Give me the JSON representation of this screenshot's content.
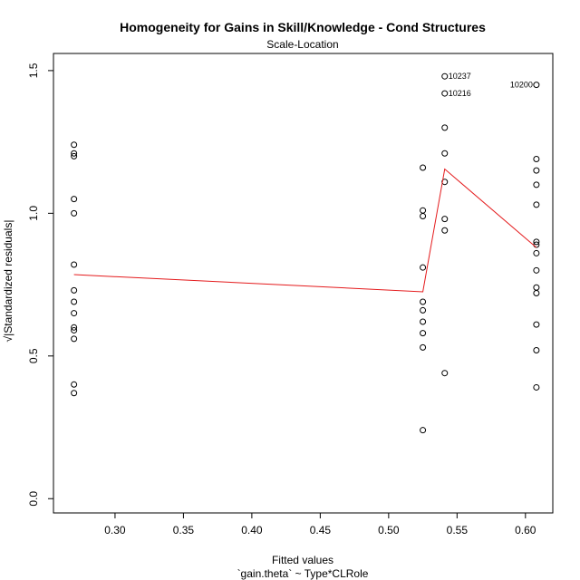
{
  "chart_data": {
    "type": "scatter",
    "title": "Homogeneity for Gains in Skill/Knowledge - Cond Structures",
    "subtitle": "Scale-Location",
    "xlabel": "Fitted values",
    "xlabel2": "`gain.theta` ~ Type*CLRole",
    "ylabel": "√|Standardized residuals|",
    "xlim": [
      0.255,
      0.62
    ],
    "ylim": [
      -0.05,
      1.56
    ],
    "xticks": [
      "0.30",
      "0.35",
      "0.40",
      "0.45",
      "0.50",
      "0.55",
      "0.60"
    ],
    "xtick_values": [
      0.3,
      0.35,
      0.4,
      0.45,
      0.5,
      0.55,
      0.6
    ],
    "yticks": [
      "0.0",
      "0.5",
      "1.0",
      "1.5"
    ],
    "ytick_values": [
      0.0,
      0.5,
      1.0,
      1.5
    ],
    "grid": false,
    "points": [
      {
        "x": 0.27,
        "y": 1.24
      },
      {
        "x": 0.27,
        "y": 1.21
      },
      {
        "x": 0.27,
        "y": 1.2
      },
      {
        "x": 0.27,
        "y": 1.05
      },
      {
        "x": 0.27,
        "y": 1.0
      },
      {
        "x": 0.27,
        "y": 0.82
      },
      {
        "x": 0.27,
        "y": 0.73
      },
      {
        "x": 0.27,
        "y": 0.69
      },
      {
        "x": 0.27,
        "y": 0.65
      },
      {
        "x": 0.27,
        "y": 0.6
      },
      {
        "x": 0.27,
        "y": 0.59
      },
      {
        "x": 0.27,
        "y": 0.56
      },
      {
        "x": 0.27,
        "y": 0.4
      },
      {
        "x": 0.27,
        "y": 0.37
      },
      {
        "x": 0.525,
        "y": 1.16
      },
      {
        "x": 0.525,
        "y": 1.01
      },
      {
        "x": 0.525,
        "y": 0.99
      },
      {
        "x": 0.525,
        "y": 0.81
      },
      {
        "x": 0.525,
        "y": 0.69
      },
      {
        "x": 0.525,
        "y": 0.66
      },
      {
        "x": 0.525,
        "y": 0.62
      },
      {
        "x": 0.525,
        "y": 0.58
      },
      {
        "x": 0.525,
        "y": 0.53
      },
      {
        "x": 0.525,
        "y": 0.24
      },
      {
        "x": 0.541,
        "y": 1.48,
        "label": "10237"
      },
      {
        "x": 0.541,
        "y": 1.42,
        "label": "10216"
      },
      {
        "x": 0.541,
        "y": 1.3
      },
      {
        "x": 0.541,
        "y": 1.21
      },
      {
        "x": 0.541,
        "y": 1.11
      },
      {
        "x": 0.541,
        "y": 0.98
      },
      {
        "x": 0.541,
        "y": 0.94
      },
      {
        "x": 0.541,
        "y": 0.44
      },
      {
        "x": 0.608,
        "y": 1.45,
        "label": "10200"
      },
      {
        "x": 0.608,
        "y": 1.19
      },
      {
        "x": 0.608,
        "y": 1.15
      },
      {
        "x": 0.608,
        "y": 1.1
      },
      {
        "x": 0.608,
        "y": 1.03
      },
      {
        "x": 0.608,
        "y": 0.9
      },
      {
        "x": 0.608,
        "y": 0.89
      },
      {
        "x": 0.608,
        "y": 0.86
      },
      {
        "x": 0.608,
        "y": 0.8
      },
      {
        "x": 0.608,
        "y": 0.74
      },
      {
        "x": 0.608,
        "y": 0.72
      },
      {
        "x": 0.608,
        "y": 0.61
      },
      {
        "x": 0.608,
        "y": 0.52
      },
      {
        "x": 0.608,
        "y": 0.39
      }
    ],
    "smooth_line": {
      "color": "#e41a1c",
      "x": [
        0.27,
        0.525,
        0.541,
        0.608
      ],
      "y": [
        0.785,
        0.725,
        1.155,
        0.88
      ]
    },
    "point_color": "#000000"
  }
}
